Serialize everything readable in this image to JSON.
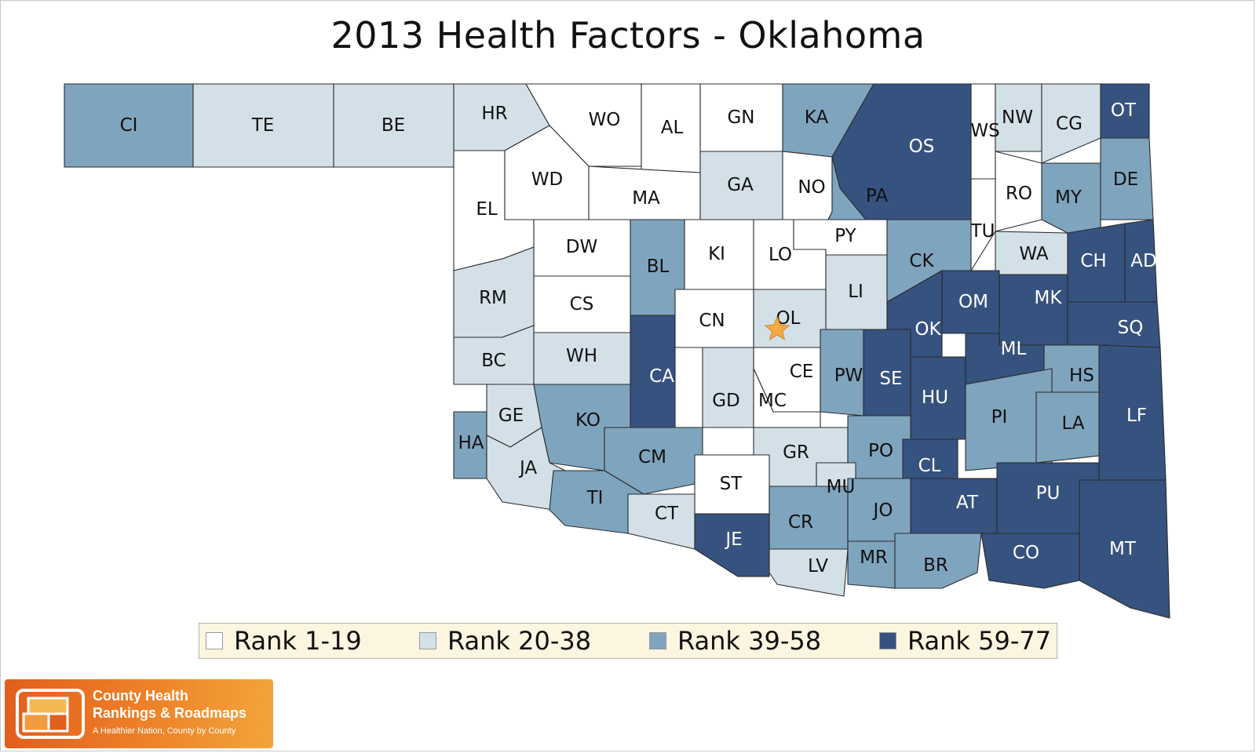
{
  "title": "2013 Health Factors - Oklahoma",
  "colors": {
    "rank_1_19": "#ffffff",
    "rank_20_38": "#d3e0e8",
    "rank_39_58": "#7fa4be",
    "rank_59_77": "#36527f",
    "star": "#f5a944",
    "legend_bg": "#fcf5e0"
  },
  "legend": [
    {
      "label": "Rank 1-19",
      "cls": "c1"
    },
    {
      "label": "Rank 20-38",
      "cls": "c2"
    },
    {
      "label": "Rank 39-58",
      "cls": "c3"
    },
    {
      "label": "Rank 59-77",
      "cls": "c4"
    }
  ],
  "counties": [
    {
      "id": "CI",
      "cls": "c3"
    },
    {
      "id": "TE",
      "cls": "c2"
    },
    {
      "id": "BE",
      "cls": "c2"
    },
    {
      "id": "HR",
      "cls": "c2"
    },
    {
      "id": "WO",
      "cls": "c1"
    },
    {
      "id": "AL",
      "cls": "c1"
    },
    {
      "id": "GN",
      "cls": "c1"
    },
    {
      "id": "KA",
      "cls": "c3"
    },
    {
      "id": "OS",
      "cls": "c4"
    },
    {
      "id": "WS",
      "cls": "c1"
    },
    {
      "id": "NW",
      "cls": "c2"
    },
    {
      "id": "CG",
      "cls": "c2"
    },
    {
      "id": "OT",
      "cls": "c4"
    },
    {
      "id": "EL",
      "cls": "c1"
    },
    {
      "id": "WD",
      "cls": "c1"
    },
    {
      "id": "MA",
      "cls": "c1"
    },
    {
      "id": "GA",
      "cls": "c2"
    },
    {
      "id": "NO",
      "cls": "c1"
    },
    {
      "id": "PA",
      "cls": "c3"
    },
    {
      "id": "RO",
      "cls": "c1"
    },
    {
      "id": "MY",
      "cls": "c3"
    },
    {
      "id": "DE",
      "cls": "c3"
    },
    {
      "id": "DW",
      "cls": "c1"
    },
    {
      "id": "BL",
      "cls": "c3"
    },
    {
      "id": "KI",
      "cls": "c1"
    },
    {
      "id": "LO",
      "cls": "c1"
    },
    {
      "id": "PY",
      "cls": "c1"
    },
    {
      "id": "TU",
      "cls": "c1"
    },
    {
      "id": "RM",
      "cls": "c2"
    },
    {
      "id": "CS",
      "cls": "c1"
    },
    {
      "id": "CN",
      "cls": "c1"
    },
    {
      "id": "OL",
      "cls": "c2"
    },
    {
      "id": "LI",
      "cls": "c2"
    },
    {
      "id": "CK",
      "cls": "c3"
    },
    {
      "id": "WA",
      "cls": "c2"
    },
    {
      "id": "CH",
      "cls": "c4"
    },
    {
      "id": "AD",
      "cls": "c4"
    },
    {
      "id": "OM",
      "cls": "c4"
    },
    {
      "id": "MK",
      "cls": "c4"
    },
    {
      "id": "OK",
      "cls": "c4"
    },
    {
      "id": "SQ",
      "cls": "c4"
    },
    {
      "id": "BC",
      "cls": "c2"
    },
    {
      "id": "WH",
      "cls": "c2"
    },
    {
      "id": "CA",
      "cls": "c4"
    },
    {
      "id": "ML",
      "cls": "c4"
    },
    {
      "id": "CE",
      "cls": "c1"
    },
    {
      "id": "PW",
      "cls": "c3"
    },
    {
      "id": "SE",
      "cls": "c4"
    },
    {
      "id": "HS",
      "cls": "c3"
    },
    {
      "id": "GE",
      "cls": "c2"
    },
    {
      "id": "KO",
      "cls": "c3"
    },
    {
      "id": "GD",
      "cls": "c2"
    },
    {
      "id": "MC",
      "cls": "c1"
    },
    {
      "id": "HU",
      "cls": "c4"
    },
    {
      "id": "PI",
      "cls": "c3"
    },
    {
      "id": "LA",
      "cls": "c3"
    },
    {
      "id": "LF",
      "cls": "c4"
    },
    {
      "id": "HA",
      "cls": "c3"
    },
    {
      "id": "JA",
      "cls": "c2"
    },
    {
      "id": "CM",
      "cls": "c3"
    },
    {
      "id": "GR",
      "cls": "c2"
    },
    {
      "id": "PO",
      "cls": "c3"
    },
    {
      "id": "CL",
      "cls": "c4"
    },
    {
      "id": "ST",
      "cls": "c1"
    },
    {
      "id": "MU",
      "cls": "c2"
    },
    {
      "id": "TI",
      "cls": "c3"
    },
    {
      "id": "AT",
      "cls": "c4"
    },
    {
      "id": "PU",
      "cls": "c4"
    },
    {
      "id": "CT",
      "cls": "c2"
    },
    {
      "id": "CR",
      "cls": "c3"
    },
    {
      "id": "JO",
      "cls": "c3"
    },
    {
      "id": "JE",
      "cls": "c4"
    },
    {
      "id": "LV",
      "cls": "c2"
    },
    {
      "id": "MR",
      "cls": "c3"
    },
    {
      "id": "BR",
      "cls": "c3"
    },
    {
      "id": "CO",
      "cls": "c4"
    },
    {
      "id": "MT",
      "cls": "c4"
    }
  ],
  "logo": {
    "name_line1": "County Health",
    "name_line2": "Rankings & Roadmaps",
    "tagline": "A Healthier Nation, County by County"
  }
}
